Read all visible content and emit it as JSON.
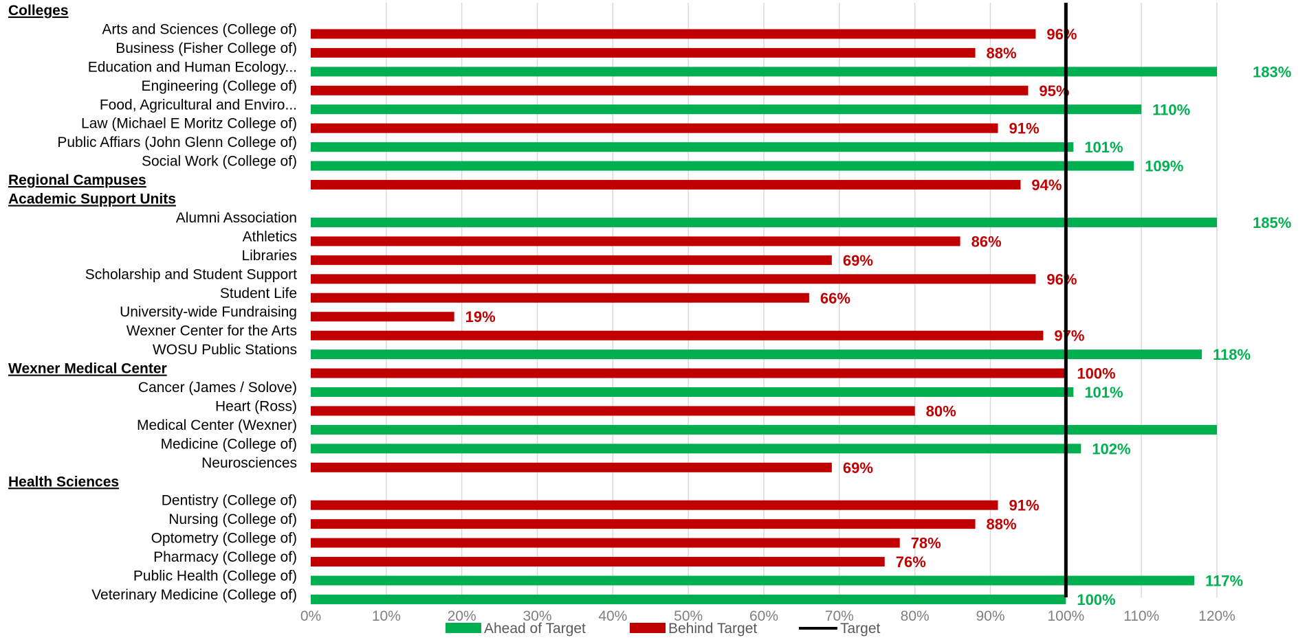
{
  "chart_data": {
    "type": "bar",
    "orientation": "horizontal",
    "title": "",
    "xlabel": "",
    "ylabel": "",
    "xlim": [
      0,
      1.2
    ],
    "x_ticks": [
      {
        "value": 0.0,
        "label": "0%"
      },
      {
        "value": 0.1,
        "label": "10%"
      },
      {
        "value": 0.2,
        "label": "20%"
      },
      {
        "value": 0.3,
        "label": "30%"
      },
      {
        "value": 0.4,
        "label": "40%"
      },
      {
        "value": 0.5,
        "label": "50%"
      },
      {
        "value": 0.6,
        "label": "60%"
      },
      {
        "value": 0.7,
        "label": "70%"
      },
      {
        "value": 0.8,
        "label": "80%"
      },
      {
        "value": 0.9,
        "label": "90%"
      },
      {
        "value": 1.0,
        "label": "100%"
      },
      {
        "value": 1.1,
        "label": "110%"
      },
      {
        "value": 1.2,
        "label": "120%"
      }
    ],
    "grid": "vertical",
    "target_line": {
      "value": 1.0,
      "color": "#000000"
    },
    "colors": {
      "ahead": "#00b050",
      "behind": "#c00000",
      "grid": "#d9d9d9",
      "tick_text": "#7f7f7f"
    },
    "legend": {
      "placement": "bottom-center",
      "items": [
        {
          "label": "Ahead of Target",
          "kind": "bar",
          "color": "#00b050"
        },
        {
          "label": "Behind Target",
          "kind": "bar",
          "color": "#c00000"
        },
        {
          "label": "Target",
          "kind": "line",
          "color": "#000000"
        }
      ]
    },
    "rows": [
      {
        "type": "header",
        "label": "Colleges"
      },
      {
        "type": "bar",
        "label": "Arts and Sciences (College of)",
        "value": 0.96,
        "status": "behind",
        "data_label": "96%"
      },
      {
        "type": "bar",
        "label": "Business (Fisher College of)",
        "value": 0.88,
        "status": "behind",
        "data_label": "88%"
      },
      {
        "type": "bar",
        "label": "Education and Human Ecology...",
        "value": 1.83,
        "status": "ahead",
        "data_label": "183%"
      },
      {
        "type": "bar",
        "label": "Engineering (College of)",
        "value": 0.95,
        "status": "behind",
        "data_label": "95%"
      },
      {
        "type": "bar",
        "label": "Food, Agricultural and Enviro...",
        "value": 1.1,
        "status": "ahead",
        "data_label": "110%"
      },
      {
        "type": "bar",
        "label": "Law (Michael E Moritz College of)",
        "value": 0.91,
        "status": "behind",
        "data_label": "91%"
      },
      {
        "type": "bar",
        "label": "Public Affiars (John Glenn College of)",
        "value": 1.01,
        "status": "ahead",
        "data_label": "101%"
      },
      {
        "type": "bar",
        "label": "Social Work (College of)",
        "value": 1.09,
        "status": "ahead",
        "data_label": "109%"
      },
      {
        "type": "header_bar",
        "label": "Regional Campuses",
        "value": 0.94,
        "status": "behind",
        "data_label": "94%"
      },
      {
        "type": "header",
        "label": "Academic Support Units"
      },
      {
        "type": "bar",
        "label": "Alumni Association",
        "value": 1.85,
        "status": "ahead",
        "data_label": "185%"
      },
      {
        "type": "bar",
        "label": "Athletics",
        "value": 0.86,
        "status": "behind",
        "data_label": "86%"
      },
      {
        "type": "bar",
        "label": "Libraries",
        "value": 0.69,
        "status": "behind",
        "data_label": "69%"
      },
      {
        "type": "bar",
        "label": "Scholarship and Student Support",
        "value": 0.96,
        "status": "behind",
        "data_label": "96%"
      },
      {
        "type": "bar",
        "label": "Student Life",
        "value": 0.66,
        "status": "behind",
        "data_label": "66%"
      },
      {
        "type": "bar",
        "label": "University-wide Fundraising",
        "value": 0.19,
        "status": "behind",
        "data_label": "19%"
      },
      {
        "type": "bar",
        "label": "Wexner Center for the Arts",
        "value": 0.97,
        "status": "behind",
        "data_label": "97%"
      },
      {
        "type": "bar",
        "label": "WOSU Public Stations",
        "value": 1.18,
        "status": "ahead",
        "data_label": "118%"
      },
      {
        "type": "header_bar",
        "label": "Wexner Medical Center",
        "value": 1.0,
        "status": "behind",
        "data_label": "100%"
      },
      {
        "type": "bar",
        "label": "Cancer (James / Solove)",
        "value": 1.01,
        "status": "ahead",
        "data_label": "101%"
      },
      {
        "type": "bar",
        "label": "Heart (Ross)",
        "value": 0.8,
        "status": "behind",
        "data_label": "80%"
      },
      {
        "type": "bar",
        "label": "Medical Center (Wexner)",
        "value": 1.2,
        "status": "ahead",
        "data_label": ""
      },
      {
        "type": "bar",
        "label": "Medicine (College of)",
        "value": 1.02,
        "status": "ahead",
        "data_label": "102%"
      },
      {
        "type": "bar",
        "label": "Neurosciences",
        "value": 0.69,
        "status": "behind",
        "data_label": "69%"
      },
      {
        "type": "header",
        "label": "Health Sciences"
      },
      {
        "type": "bar",
        "label": "Dentistry (College of)",
        "value": 0.91,
        "status": "behind",
        "data_label": "91%"
      },
      {
        "type": "bar",
        "label": "Nursing (College of)",
        "value": 0.88,
        "status": "behind",
        "data_label": "88%"
      },
      {
        "type": "bar",
        "label": "Optometry (College of)",
        "value": 0.78,
        "status": "behind",
        "data_label": "78%"
      },
      {
        "type": "bar",
        "label": "Pharmacy (College of)",
        "value": 0.76,
        "status": "behind",
        "data_label": "76%"
      },
      {
        "type": "bar",
        "label": "Public Health (College of)",
        "value": 1.17,
        "status": "ahead",
        "data_label": "117%"
      },
      {
        "type": "bar",
        "label": "Veterinary Medicine (College of)",
        "value": 1.0,
        "status": "ahead",
        "data_label": "100%"
      }
    ]
  }
}
